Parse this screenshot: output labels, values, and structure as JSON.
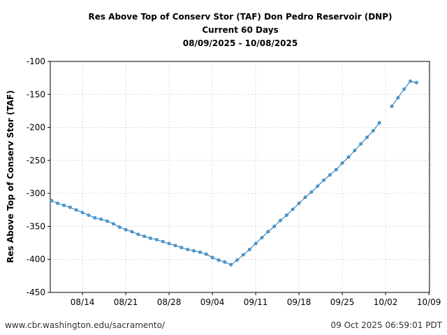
{
  "chart_data": {
    "type": "line",
    "title": [
      "Res Above Top of Conserv Stor (TAF) Don Pedro Reservoir (DNP)",
      "Current 60 Days",
      "08/09/2025 - 10/08/2025"
    ],
    "xlabel": "",
    "ylabel": "Res Above Top of Conserv Stor (TAF)",
    "ylim": [
      -450,
      -100
    ],
    "yticks": [
      -100,
      -150,
      -200,
      -250,
      -300,
      -350,
      -400,
      -450
    ],
    "xticks": [
      "08/14",
      "08/21",
      "08/28",
      "09/04",
      "09/11",
      "09/18",
      "09/25",
      "10/02",
      "10/09"
    ],
    "xtick_days": [
      5,
      12,
      19,
      26,
      33,
      40,
      47,
      54,
      61
    ],
    "xlim_days": [
      -0.2,
      61.1
    ],
    "start_date": "08/09/2025",
    "grid": true,
    "color": "#1f77b4",
    "series": [
      {
        "name": "DNP",
        "values": [
          -311,
          -315,
          -318,
          -321,
          -325,
          -329,
          -333,
          -337,
          -339,
          -342,
          -346,
          -351,
          -355,
          -358,
          -362,
          -365,
          -368,
          -370,
          -373,
          -376,
          -379,
          -382,
          -385,
          -387,
          -389,
          -392,
          -397,
          -401,
          -404,
          -408,
          -401,
          -393,
          -385,
          -376,
          -367,
          -358,
          -350,
          -341,
          -333,
          -324,
          -315,
          -306,
          -298,
          -289,
          -280,
          -272,
          -264,
          -254,
          -245,
          -235,
          -225,
          -215,
          -205,
          -193,
          null,
          -168,
          -155,
          -142,
          -130,
          -132
        ]
      }
    ]
  },
  "footer": {
    "left": "www.cbr.washington.edu/sacramento/",
    "right": "09 Oct 2025 06:59:01 PDT"
  }
}
